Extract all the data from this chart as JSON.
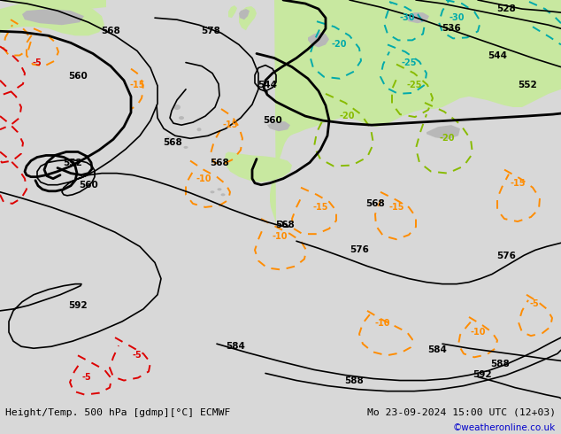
{
  "title_left": "Height/Temp. 500 hPa [gdmp][°C] ECMWF",
  "title_right": "Mo 23-09-2024 15:00 UTC (12+03)",
  "credit": "©weatheronline.co.uk",
  "bg_ocean": "#d8d8d8",
  "land_green": "#c8e8a0",
  "land_gray": "#b8b8b8",
  "land_white": "#e8e8e8",
  "hgt_color": "#000000",
  "orange": "#ff8c00",
  "red": "#dd0000",
  "cyan": "#00aaaa",
  "ygreen": "#88bb00",
  "bar_color": "#ffffff",
  "text_color": "#000000",
  "credit_color": "#0000cc",
  "fig_w": 6.34,
  "fig_h": 4.9,
  "dpi": 100
}
